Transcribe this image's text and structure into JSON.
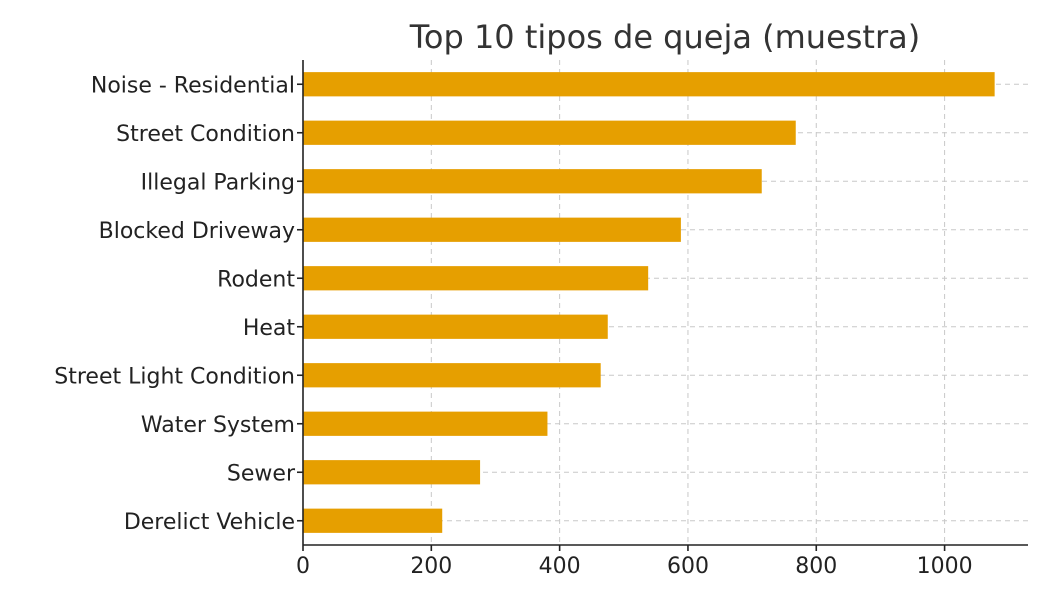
{
  "chart_data": {
    "type": "bar",
    "orientation": "horizontal",
    "title": "Top 10 tipos de queja (muestra)",
    "xlabel": "",
    "ylabel": "",
    "categories": [
      "Noise - Residential",
      "Street Condition",
      "Illegal Parking",
      "Blocked Driveway",
      "Rodent",
      "Heat",
      "Street Light Condition",
      "Water System",
      "Sewer",
      "Derelict Vehicle"
    ],
    "values": [
      1078,
      768,
      715,
      589,
      538,
      475,
      464,
      381,
      276,
      217
    ],
    "xlim": [
      0,
      1130
    ],
    "xticks": [
      0,
      200,
      400,
      600,
      800,
      1000
    ],
    "grid": true,
    "bar_color": "#e69f00"
  }
}
